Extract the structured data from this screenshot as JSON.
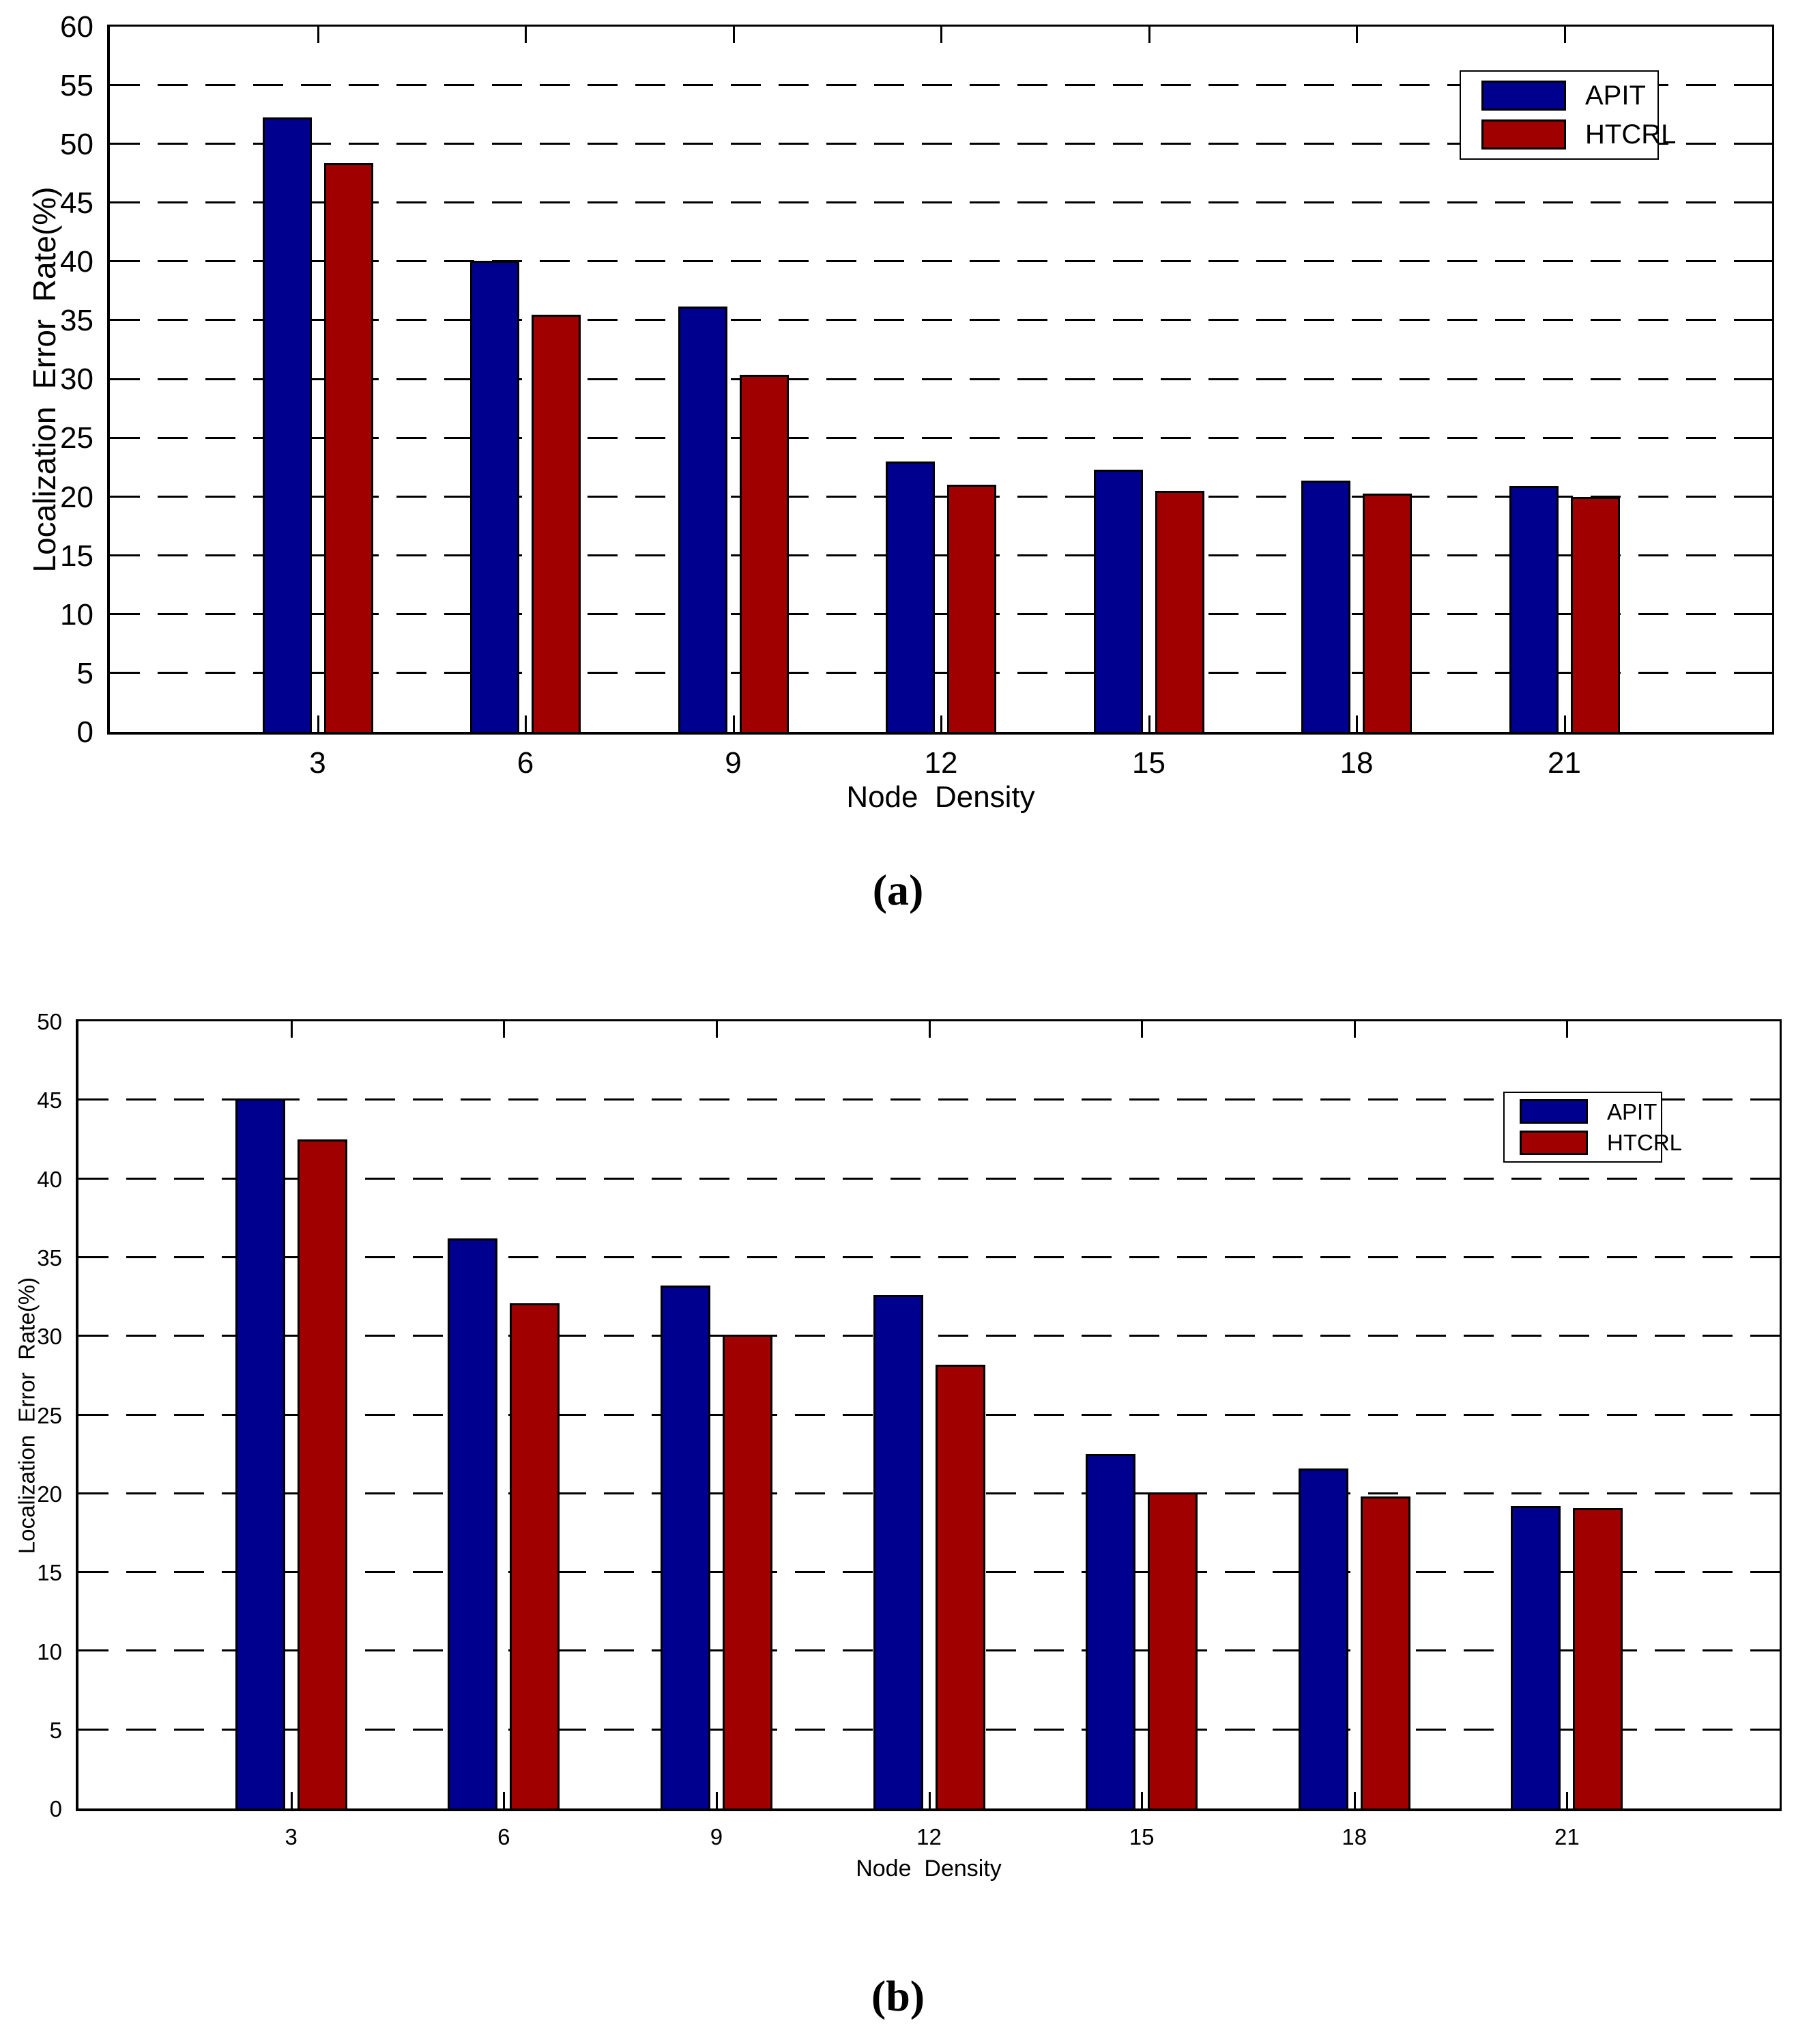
{
  "colors": {
    "apit": "#00008F",
    "htcrl": "#A00000",
    "axis": "#000000",
    "background": "#FFFFFF"
  },
  "captions": {
    "a": "(a)",
    "b": "(b)"
  },
  "legend": {
    "apit_label": "APIT",
    "htcrl_label": "HTCRL"
  },
  "chart_data": [
    {
      "type": "bar",
      "panel": "a",
      "title": "",
      "xlabel": "Node  Density",
      "ylabel": "Localization  Error  Rate(%)",
      "categories": [
        "3",
        "6",
        "9",
        "12",
        "15",
        "18",
        "21"
      ],
      "ylim": [
        0,
        60
      ],
      "ytick_step": 5,
      "grid": "horizontal-dashed",
      "legend_position": "top-right",
      "series": [
        {
          "name": "APIT",
          "color": "#00008F",
          "values": [
            52.3,
            40.1,
            36.2,
            23.0,
            22.3,
            21.4,
            20.9
          ]
        },
        {
          "name": "HTCRL",
          "color": "#A00000",
          "values": [
            48.4,
            35.5,
            30.4,
            21.0,
            20.5,
            20.3,
            20.0
          ]
        }
      ]
    },
    {
      "type": "bar",
      "panel": "b",
      "title": "",
      "xlabel": "Node  Density",
      "ylabel": "Localization  Error  Rate(%)",
      "categories": [
        "3",
        "6",
        "9",
        "12",
        "15",
        "18",
        "21"
      ],
      "ylim": [
        0,
        50
      ],
      "ytick_step": 5,
      "grid": "horizontal-dashed",
      "legend_position": "top-right",
      "series": [
        {
          "name": "APIT",
          "color": "#00008F",
          "values": [
            45.1,
            36.2,
            33.2,
            32.6,
            22.5,
            21.6,
            19.2
          ]
        },
        {
          "name": "HTCRL",
          "color": "#A00000",
          "values": [
            42.5,
            32.1,
            30.1,
            28.2,
            20.1,
            19.8,
            19.1
          ]
        }
      ]
    }
  ]
}
